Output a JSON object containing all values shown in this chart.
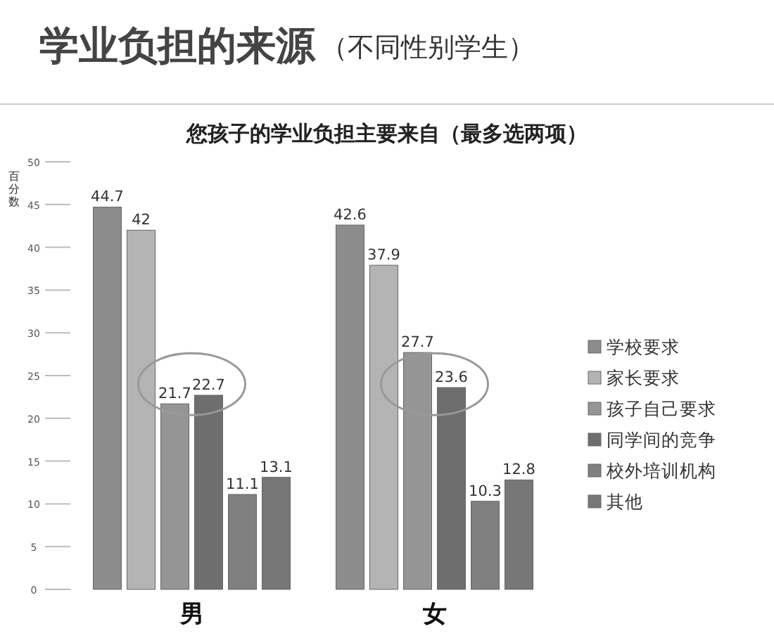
{
  "chart_data": {
    "type": "bar",
    "title": "学业负担的来源",
    "subtitle": "（不同性别学生）",
    "annotations": [
      "您孩子的学业负担主要来自（最多选两项）"
    ],
    "ylabel": "百分数",
    "categories": [
      "男",
      "女"
    ],
    "series": [
      {
        "name": "学校要求",
        "color": "#8c8c8c",
        "values": [
          44.7,
          42.6
        ]
      },
      {
        "name": "家长要求",
        "color": "#b4b4b4",
        "values": [
          42,
          37.9
        ]
      },
      {
        "name": "孩子自己要求",
        "color": "#959595",
        "values": [
          21.7,
          27.7
        ]
      },
      {
        "name": "同学间的竞争",
        "color": "#6e6e6e",
        "values": [
          22.7,
          23.6
        ]
      },
      {
        "name": "校外培训机构",
        "color": "#808080",
        "values": [
          11.1,
          10.3
        ]
      },
      {
        "name": "其他",
        "color": "#777777",
        "values": [
          13.1,
          12.8
        ]
      }
    ],
    "ylim": [
      0,
      50
    ],
    "yticks": [
      0,
      5,
      10,
      15,
      20,
      25,
      30,
      35,
      40,
      45,
      50
    ],
    "data_labels": true,
    "legend": "right"
  }
}
